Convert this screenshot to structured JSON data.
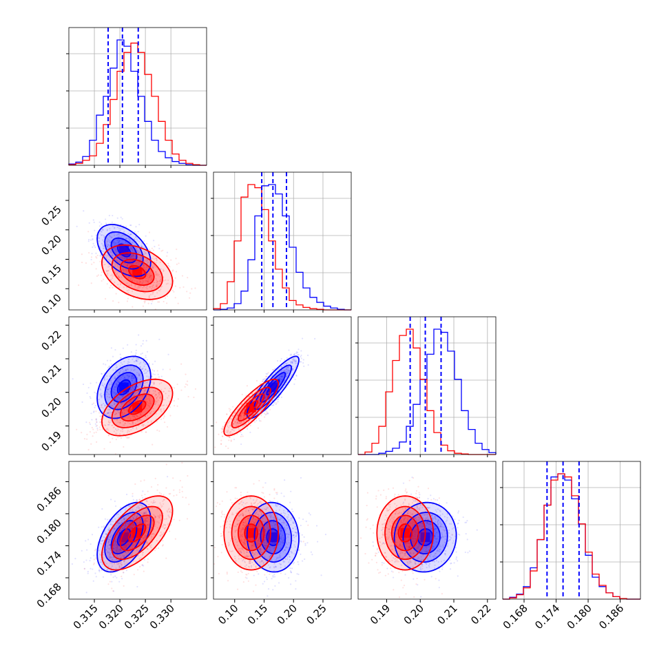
{
  "chart_data": {
    "type": "corner",
    "colors": {
      "blue": "#0000ff",
      "red": "#ff0000",
      "grid": "#b0b0b0"
    },
    "grid": true,
    "parameters": [
      {
        "range": [
          0.31,
          0.337
        ],
        "ticks": [
          0.315,
          0.32,
          0.325,
          0.33
        ],
        "tick_labels": [
          "0.315",
          "0.320",
          "0.325",
          "0.330"
        ]
      },
      {
        "range": [
          0.064,
          0.298
        ],
        "ticks": [
          0.1,
          0.15,
          0.2,
          0.25
        ],
        "tick_labels": [
          "0.10",
          "0.15",
          "0.20",
          "0.25"
        ]
      },
      {
        "range": [
          0.1815,
          0.2225
        ],
        "ticks": [
          0.19,
          0.2,
          0.21,
          0.22
        ],
        "tick_labels": [
          "0.19",
          "0.20",
          "0.21",
          "0.22"
        ]
      },
      {
        "range": [
          0.164,
          0.1898
        ],
        "ticks": [
          0.168,
          0.174,
          0.18,
          0.186
        ],
        "tick_labels": [
          "0.168",
          "0.174",
          "0.180",
          "0.186"
        ]
      }
    ],
    "blue": {
      "quantiles": [
        [
          0.3177,
          0.3205,
          0.3236
        ],
        [
          0.146,
          0.165,
          0.188
        ],
        [
          0.197,
          0.2015,
          0.2062
        ],
        [
          0.1723,
          0.1753,
          0.1783
        ]
      ],
      "histograms": [
        [
          2,
          5,
          14,
          40,
          80,
          110,
          155,
          200,
          190,
          150,
          110,
          70,
          40,
          22,
          12,
          6,
          3,
          1,
          0,
          0
        ],
        [
          0,
          1,
          3,
          10,
          30,
          80,
          150,
          198,
          200,
          185,
          150,
          100,
          60,
          35,
          20,
          12,
          6,
          3,
          1,
          0
        ],
        [
          0,
          0,
          0,
          2,
          5,
          10,
          20,
          45,
          80,
          120,
          160,
          200,
          195,
          165,
          120,
          70,
          40,
          18,
          8,
          3
        ],
        [
          0,
          3,
          8,
          20,
          50,
          95,
          150,
          195,
          200,
          190,
          160,
          120,
          70,
          35,
          20,
          10,
          4,
          1,
          0,
          0
        ]
      ],
      "means": [
        0.3208,
        0.165,
        0.2015,
        0.1756
      ],
      "sigmas": [
        0.0025,
        0.021,
        0.0044,
        0.0031
      ],
      "correlations": [
        [
          1,
          -0.45,
          0.35,
          0.5
        ],
        [
          -0.45,
          1,
          0.88,
          -0.05
        ],
        [
          0.35,
          0.88,
          1,
          0.05
        ],
        [
          0.5,
          -0.05,
          0.05,
          1
        ]
      ]
    },
    "red": {
      "histograms": [
        [
          1,
          3,
          8,
          15,
          35,
          65,
          105,
          150,
          180,
          195,
          180,
          145,
          110,
          70,
          40,
          18,
          8,
          3,
          1,
          0
        ],
        [
          2,
          10,
          45,
          110,
          180,
          200,
          195,
          160,
          110,
          65,
          35,
          15,
          8,
          4,
          2,
          1,
          0,
          0,
          0,
          0
        ],
        [
          0,
          4,
          18,
          45,
          100,
          150,
          190,
          200,
          170,
          120,
          70,
          35,
          15,
          6,
          2,
          1,
          0,
          0,
          0,
          0
        ],
        [
          0,
          2,
          7,
          18,
          45,
          95,
          150,
          190,
          200,
          195,
          165,
          120,
          75,
          40,
          22,
          10,
          4,
          1,
          0,
          0
        ]
      ],
      "means": [
        0.3234,
        0.128,
        0.1955,
        0.1764
      ],
      "sigmas": [
        0.0033,
        0.022,
        0.004,
        0.0033
      ],
      "correlations": [
        [
          1,
          -0.35,
          0.5,
          0.6
        ],
        [
          -0.35,
          1,
          0.85,
          0.0
        ],
        [
          0.5,
          0.85,
          1,
          0.0
        ],
        [
          0.6,
          0.0,
          0.0,
          1
        ]
      ]
    }
  }
}
